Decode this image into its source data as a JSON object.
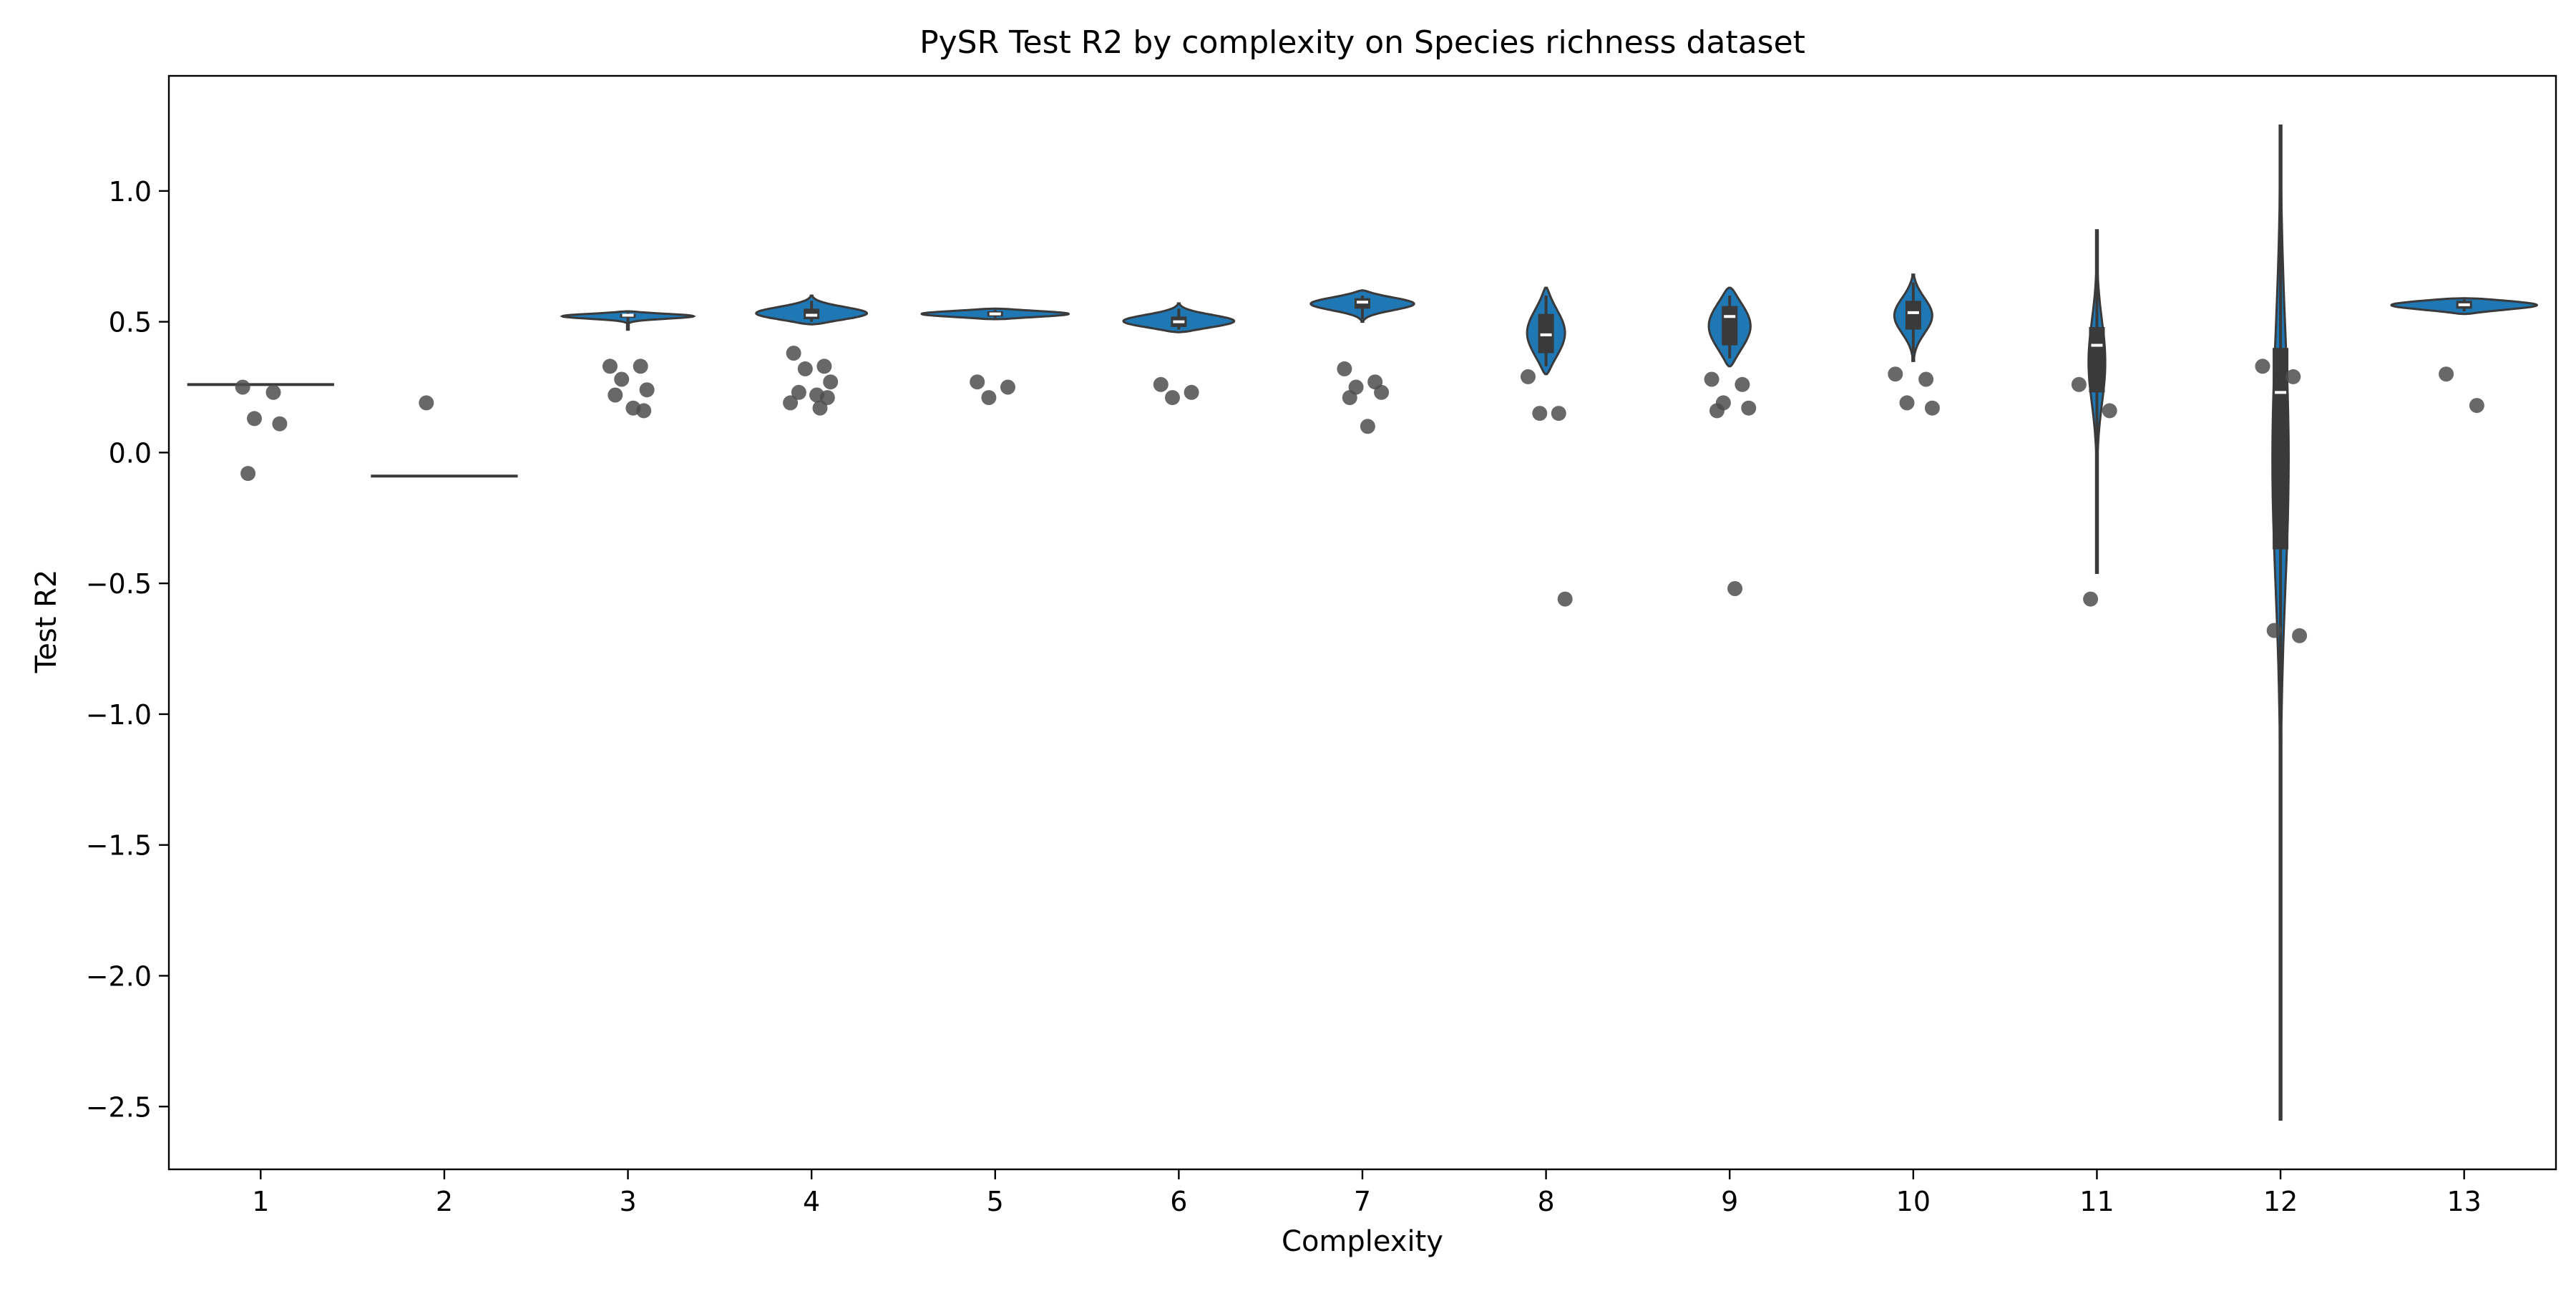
{
  "chart_data": {
    "type": "violin",
    "title": "PySR Test R2 by complexity on Species richness dataset",
    "xlabel": "Complexity",
    "ylabel": "Test R2",
    "categories": [
      "1",
      "2",
      "3",
      "4",
      "5",
      "6",
      "7",
      "8",
      "9",
      "10",
      "11",
      "12",
      "13"
    ],
    "ylim": [
      -2.74,
      1.44
    ],
    "yticks": [
      1.0,
      0.5,
      0.0,
      -0.5,
      -1.0,
      -1.5,
      -2.0,
      -2.5
    ],
    "ytick_labels": [
      "1.0",
      "0.5",
      "0.0",
      "−0.5",
      "−1.0",
      "−1.5",
      "−2.0",
      "−2.5"
    ],
    "grid": false,
    "violin_fill_color": "#1f77b4",
    "violin_edge_color": "#3a3a3a",
    "point_color": "#4d4d4d",
    "violins": [
      {
        "category": "1",
        "shape": "flat",
        "value": 0.26
      },
      {
        "category": "2",
        "shape": "flat",
        "value": -0.09
      },
      {
        "category": "3",
        "ymin": 0.47,
        "ymax": 0.54,
        "q1": 0.515,
        "median": 0.525,
        "q3": 0.53,
        "lower_whisker": 0.49,
        "upper_whisker": 0.535
      },
      {
        "category": "4",
        "ymin": 0.49,
        "ymax": 0.6,
        "q1": 0.51,
        "median": 0.525,
        "q3": 0.55,
        "lower_whisker": 0.5,
        "upper_whisker": 0.58
      },
      {
        "category": "5",
        "ymin": 0.51,
        "ymax": 0.55,
        "q1": 0.52,
        "median": 0.53,
        "q3": 0.54,
        "lower_whisker": 0.515,
        "upper_whisker": 0.545
      },
      {
        "category": "6",
        "ymin": 0.46,
        "ymax": 0.57,
        "q1": 0.48,
        "median": 0.5,
        "q3": 0.52,
        "lower_whisker": 0.47,
        "upper_whisker": 0.55
      },
      {
        "category": "7",
        "ymin": 0.5,
        "ymax": 0.62,
        "q1": 0.55,
        "median": 0.575,
        "q3": 0.59,
        "lower_whisker": 0.51,
        "upper_whisker": 0.6
      },
      {
        "category": "8",
        "ymin": 0.3,
        "ymax": 0.63,
        "q1": 0.38,
        "median": 0.45,
        "q3": 0.53,
        "lower_whisker": 0.33,
        "upper_whisker": 0.6
      },
      {
        "category": "9",
        "ymin": 0.33,
        "ymax": 0.63,
        "q1": 0.41,
        "median": 0.52,
        "q3": 0.56,
        "lower_whisker": 0.36,
        "upper_whisker": 0.6
      },
      {
        "category": "10",
        "ymin": 0.35,
        "ymax": 0.68,
        "q1": 0.47,
        "median": 0.535,
        "q3": 0.58,
        "lower_whisker": 0.38,
        "upper_whisker": 0.65
      },
      {
        "category": "11",
        "ymin": -0.46,
        "ymax": 0.85,
        "q1": 0.23,
        "median": 0.41,
        "q3": 0.48,
        "lower_whisker": -0.4,
        "upper_whisker": 0.8
      },
      {
        "category": "12",
        "ymin": -2.55,
        "ymax": 1.25,
        "q1": -0.37,
        "median": 0.23,
        "q3": 0.4,
        "lower_whisker": -2.5,
        "upper_whisker": 1.2
      },
      {
        "category": "13",
        "ymin": 0.53,
        "ymax": 0.59,
        "q1": 0.55,
        "median": 0.565,
        "q3": 0.58,
        "lower_whisker": 0.54,
        "upper_whisker": 0.585
      }
    ],
    "points": [
      {
        "x": 1,
        "values": [
          0.25,
          0.23,
          0.13,
          0.11,
          -0.08
        ]
      },
      {
        "x": 2,
        "values": [
          0.19
        ]
      },
      {
        "x": 3,
        "values": [
          0.33,
          0.33,
          0.28,
          0.24,
          0.22,
          0.17,
          0.16
        ]
      },
      {
        "x": 4,
        "values": [
          0.38,
          0.33,
          0.32,
          0.27,
          0.23,
          0.22,
          0.21,
          0.19,
          0.17
        ]
      },
      {
        "x": 5,
        "values": [
          0.27,
          0.25,
          0.21
        ]
      },
      {
        "x": 6,
        "values": [
          0.26,
          0.23,
          0.21
        ]
      },
      {
        "x": 7,
        "values": [
          0.32,
          0.27,
          0.25,
          0.23,
          0.21,
          0.1
        ]
      },
      {
        "x": 8,
        "values": [
          0.29,
          0.15,
          0.15,
          -0.56
        ]
      },
      {
        "x": 9,
        "values": [
          0.28,
          0.26,
          0.19,
          0.17,
          0.16,
          -0.52
        ]
      },
      {
        "x": 10,
        "values": [
          0.3,
          0.28,
          0.19,
          0.17
        ]
      },
      {
        "x": 11,
        "values": [
          0.26,
          0.16,
          -0.56
        ]
      },
      {
        "x": 12,
        "values": [
          0.33,
          0.29,
          -0.68,
          -0.7
        ]
      },
      {
        "x": 13,
        "values": [
          0.3,
          0.18
        ]
      }
    ]
  }
}
